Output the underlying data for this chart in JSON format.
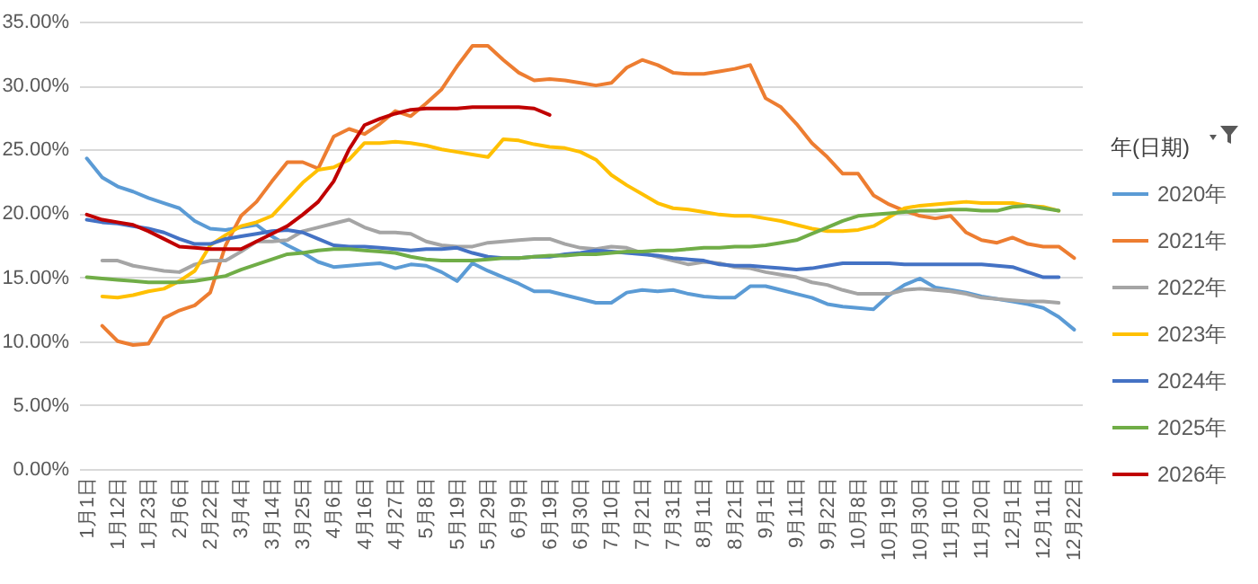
{
  "chart_data": {
    "type": "line",
    "categories": [
      "1月1日",
      null,
      "1月12日",
      null,
      "1月23日",
      null,
      "2月6日",
      null,
      "2月22日",
      null,
      "3月4日",
      null,
      "3月14日",
      null,
      "3月25日",
      null,
      "4月6日",
      null,
      "4月16日",
      null,
      "4月27日",
      null,
      "5月8日",
      null,
      "5月19日",
      null,
      "5月29日",
      null,
      "6月9日",
      null,
      "6月19日",
      null,
      "6月30日",
      null,
      "7月10日",
      null,
      "7月21日",
      null,
      "7月31日",
      null,
      "8月11日",
      null,
      "8月21日",
      null,
      "9月1日",
      null,
      "9月11日",
      null,
      "9月22日",
      null,
      "10月8日",
      null,
      "10月19日",
      null,
      "10月30日",
      null,
      "11月10日",
      null,
      "11月20日",
      null,
      "12月1日",
      null,
      "12月11日",
      null,
      "12月22日"
    ],
    "series": [
      {
        "name": "2020年",
        "color": "#5b9bd5",
        "values": [
          24.3,
          22.8,
          22.1,
          21.7,
          21.2,
          20.8,
          20.4,
          19.4,
          18.8,
          18.7,
          18.9,
          19.1,
          18.2,
          17.5,
          16.9,
          16.2,
          15.8,
          15.9,
          16.0,
          16.1,
          15.7,
          16.0,
          15.9,
          15.4,
          14.7,
          16.1,
          15.5,
          15.0,
          14.5,
          13.9,
          13.9,
          13.6,
          13.3,
          13.0,
          13.0,
          13.8,
          14.0,
          13.9,
          14.0,
          13.7,
          13.5,
          13.4,
          13.4,
          14.3,
          14.3,
          14.0,
          13.7,
          13.4,
          12.9,
          12.7,
          12.6,
          12.5,
          13.6,
          14.4,
          14.9,
          14.2,
          14.0,
          13.8,
          13.5,
          13.3,
          13.1,
          12.9,
          12.6,
          11.9,
          10.9
        ]
      },
      {
        "name": "2021年",
        "color": "#ed7d31",
        "values": [
          null,
          11.2,
          10.0,
          9.7,
          9.8,
          11.8,
          12.4,
          12.8,
          13.8,
          17.5,
          19.8,
          20.9,
          22.5,
          24.0,
          24.0,
          23.5,
          26.0,
          26.6,
          26.2,
          27.0,
          28.0,
          27.6,
          28.6,
          29.7,
          31.5,
          33.1,
          33.1,
          32.0,
          31.0,
          30.4,
          30.5,
          30.4,
          30.2,
          30.0,
          30.2,
          31.4,
          32.0,
          31.6,
          31.0,
          30.9,
          30.9,
          31.1,
          31.3,
          31.6,
          29.0,
          28.3,
          27.0,
          25.5,
          24.4,
          23.1,
          23.1,
          21.4,
          20.7,
          20.2,
          19.8,
          19.6,
          19.8,
          18.5,
          17.9,
          17.7,
          18.1,
          17.6,
          17.4,
          17.4,
          16.5
        ]
      },
      {
        "name": "2022年",
        "color": "#a5a5a5",
        "values": [
          null,
          16.3,
          16.3,
          15.9,
          15.7,
          15.5,
          15.4,
          16.0,
          16.3,
          16.3,
          17.0,
          17.8,
          17.8,
          17.9,
          18.6,
          18.9,
          19.2,
          19.5,
          18.9,
          18.5,
          18.5,
          18.4,
          17.8,
          17.5,
          17.4,
          17.4,
          17.7,
          17.8,
          17.9,
          18.0,
          18.0,
          17.6,
          17.3,
          17.2,
          17.4,
          17.3,
          16.9,
          16.6,
          16.3,
          16.0,
          16.2,
          16.1,
          15.8,
          15.7,
          15.4,
          15.2,
          15.0,
          14.6,
          14.4,
          14.0,
          13.7,
          13.7,
          13.7,
          14.0,
          14.1,
          14.0,
          13.9,
          13.7,
          13.4,
          13.3,
          13.2,
          13.1,
          13.1,
          13.0,
          null
        ]
      },
      {
        "name": "2023年",
        "color": "#ffc000",
        "values": [
          null,
          13.5,
          13.4,
          13.6,
          13.9,
          14.1,
          14.7,
          15.5,
          17.5,
          18.3,
          19.0,
          19.3,
          19.8,
          21.1,
          22.4,
          23.4,
          23.6,
          24.2,
          25.5,
          25.5,
          25.6,
          25.5,
          25.3,
          25.0,
          24.8,
          24.6,
          24.4,
          25.8,
          25.7,
          25.4,
          25.2,
          25.1,
          24.8,
          24.2,
          23.0,
          22.2,
          21.5,
          20.8,
          20.4,
          20.3,
          20.1,
          19.9,
          19.8,
          19.8,
          19.6,
          19.4,
          19.1,
          18.8,
          18.6,
          18.6,
          18.7,
          19.0,
          19.7,
          20.4,
          20.6,
          20.7,
          20.8,
          20.9,
          20.8,
          20.8,
          20.8,
          20.6,
          20.5,
          20.2,
          null
        ]
      },
      {
        "name": "2024年",
        "color": "#4472c4",
        "values": [
          19.5,
          19.3,
          19.2,
          19.0,
          18.8,
          18.5,
          18.0,
          17.6,
          17.6,
          18.0,
          18.2,
          18.4,
          18.6,
          18.7,
          18.5,
          18.0,
          17.5,
          17.4,
          17.4,
          17.3,
          17.2,
          17.1,
          17.2,
          17.2,
          17.3,
          16.9,
          16.6,
          16.5,
          16.5,
          16.6,
          16.6,
          16.8,
          16.9,
          17.1,
          17.0,
          16.9,
          16.8,
          16.7,
          16.5,
          16.4,
          16.3,
          16.0,
          15.9,
          15.9,
          15.8,
          15.7,
          15.6,
          15.7,
          15.9,
          16.1,
          16.1,
          16.1,
          16.1,
          16.0,
          16.0,
          16.0,
          16.0,
          16.0,
          16.0,
          15.9,
          15.8,
          15.4,
          15.0,
          15.0,
          null
        ]
      },
      {
        "name": "2025年",
        "color": "#70ad47",
        "values": [
          15.0,
          14.9,
          14.8,
          14.7,
          14.6,
          14.6,
          14.6,
          14.7,
          14.9,
          15.1,
          15.6,
          16.0,
          16.4,
          16.8,
          16.9,
          17.1,
          17.2,
          17.2,
          17.1,
          17.0,
          16.9,
          16.6,
          16.4,
          16.3,
          16.3,
          16.3,
          16.4,
          16.5,
          16.5,
          16.6,
          16.7,
          16.7,
          16.8,
          16.8,
          16.9,
          17.0,
          17.0,
          17.1,
          17.1,
          17.2,
          17.3,
          17.3,
          17.4,
          17.4,
          17.5,
          17.7,
          17.9,
          18.4,
          18.9,
          19.4,
          19.8,
          19.9,
          20.0,
          20.1,
          20.2,
          20.2,
          20.3,
          20.3,
          20.2,
          20.2,
          20.5,
          20.6,
          20.4,
          20.2,
          null
        ]
      },
      {
        "name": "2026年",
        "color": "#c00000",
        "values": [
          19.9,
          19.5,
          19.3,
          19.1,
          18.6,
          18.0,
          17.4,
          17.3,
          17.2,
          17.2,
          17.2,
          17.8,
          18.4,
          19.0,
          19.9,
          20.9,
          22.5,
          25.0,
          26.9,
          27.4,
          27.8,
          28.1,
          28.2,
          28.2,
          28.2,
          28.3,
          28.3,
          28.3,
          28.3,
          28.2,
          27.7,
          null,
          null,
          null,
          null,
          null,
          null,
          null,
          null,
          null,
          null,
          null,
          null,
          null,
          null,
          null,
          null,
          null,
          null,
          null,
          null,
          null,
          null,
          null,
          null,
          null,
          null,
          null,
          null,
          null,
          null,
          null,
          null,
          null,
          null
        ]
      }
    ],
    "ylim": [
      0,
      35
    ],
    "yticks": [
      {
        "value": 0,
        "label": "0.00%"
      },
      {
        "value": 5,
        "label": "5.00%"
      },
      {
        "value": 10,
        "label": "10.00%"
      },
      {
        "value": 15,
        "label": "15.00%"
      },
      {
        "value": 20,
        "label": "20.00%"
      },
      {
        "value": 25,
        "label": "25.00%"
      },
      {
        "value": 30,
        "label": "30.00%"
      },
      {
        "value": 35,
        "label": "35.00%"
      }
    ],
    "grid": "y",
    "legend": "right",
    "legend_title": "年(日期)",
    "line_style": "solid"
  }
}
